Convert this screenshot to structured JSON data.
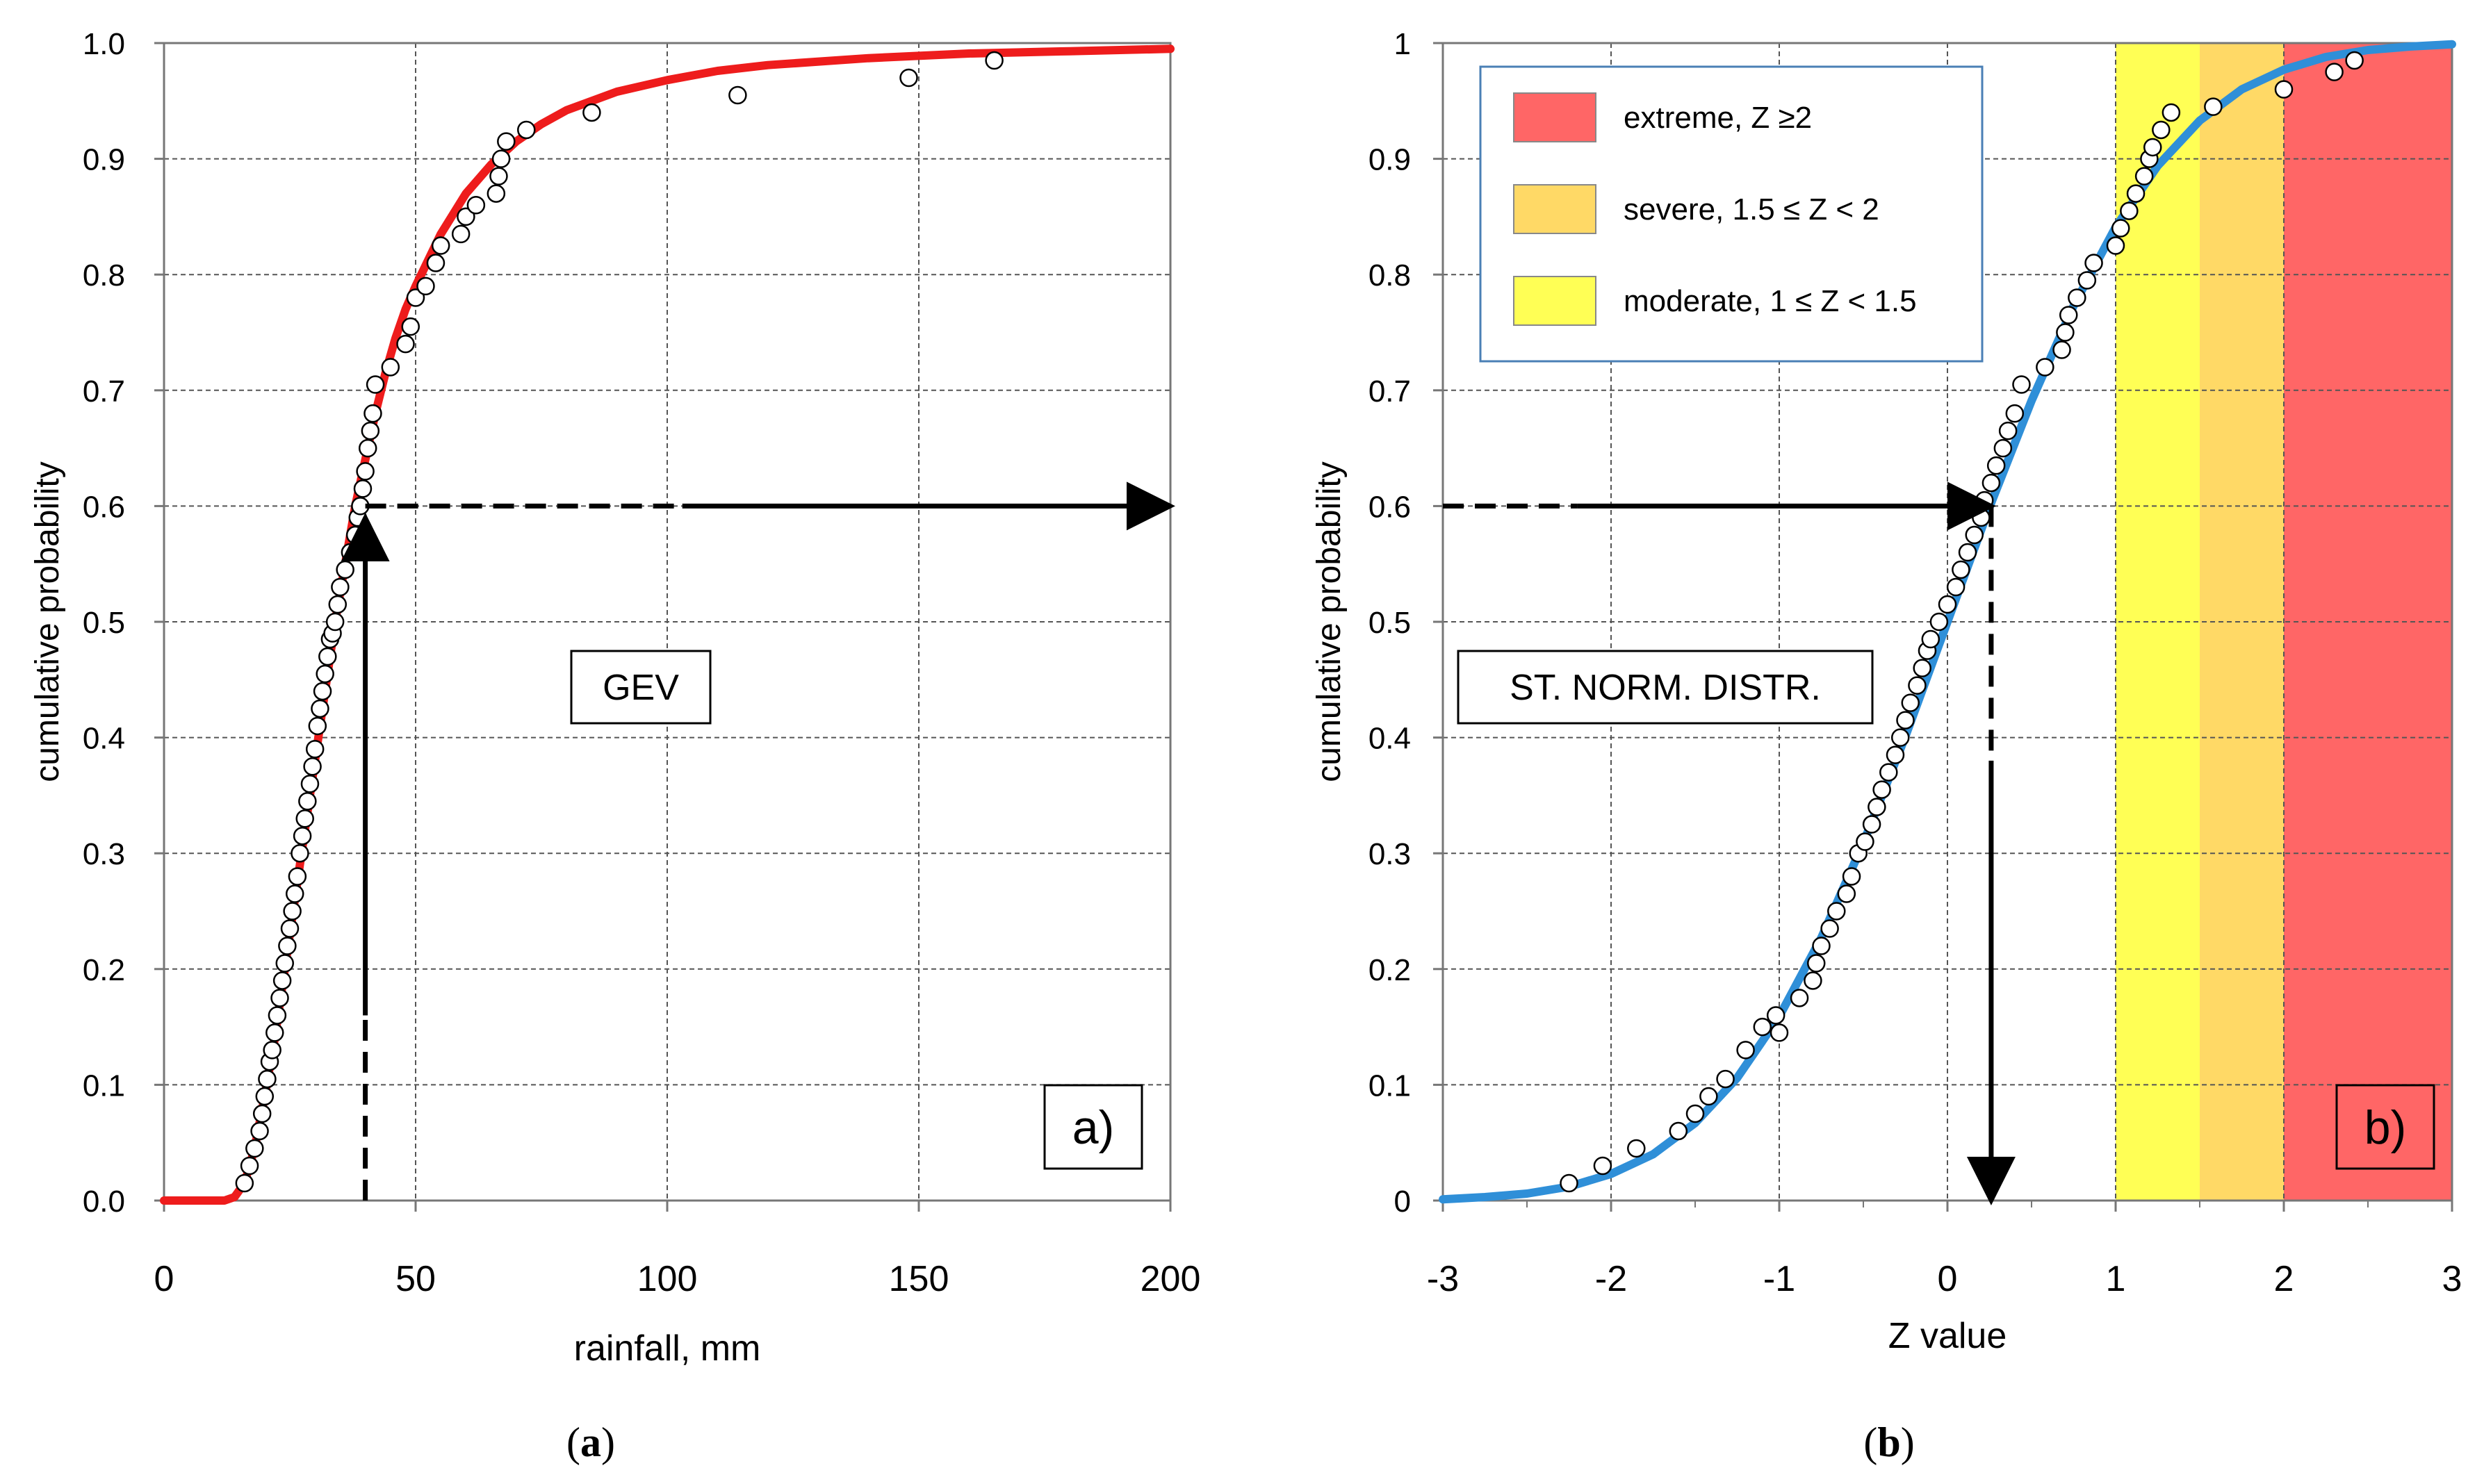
{
  "chart_data": [
    {
      "type": "line",
      "panel_label": "a)",
      "caption_letter": "a",
      "box_label": "GEV",
      "xlabel": "rainfall,  mm",
      "ylabel": "cumulative probability",
      "xlim": [
        0,
        200
      ],
      "ylim": [
        0,
        1
      ],
      "x_ticks": [
        0,
        50,
        100,
        150,
        200
      ],
      "y_ticks": [
        0,
        0.1,
        0.2,
        0.3,
        0.4,
        0.5,
        0.6,
        0.7,
        0.8,
        0.9,
        1.0
      ],
      "y_tick_labels": [
        "0.0",
        "0.1",
        "0.2",
        "0.3",
        "0.4",
        "0.5",
        "0.6",
        "0.7",
        "0.8",
        "0.9",
        "1.0"
      ],
      "grid": true,
      "series": [
        {
          "kind": "curve",
          "color": "#ee1c1c",
          "x": [
            0,
            12,
            14,
            16,
            18,
            20,
            22,
            24,
            26,
            28,
            30,
            32,
            34,
            36,
            38,
            40,
            42,
            44,
            46,
            48,
            50,
            55,
            60,
            65,
            70,
            75,
            80,
            90,
            100,
            110,
            120,
            140,
            160,
            180,
            200
          ],
          "y": [
            0,
            0,
            0.003,
            0.015,
            0.045,
            0.09,
            0.14,
            0.2,
            0.26,
            0.32,
            0.38,
            0.44,
            0.5,
            0.55,
            0.6,
            0.64,
            0.68,
            0.715,
            0.745,
            0.77,
            0.79,
            0.835,
            0.87,
            0.895,
            0.915,
            0.93,
            0.942,
            0.958,
            0.968,
            0.976,
            0.981,
            0.987,
            0.991,
            0.993,
            0.995
          ]
        },
        {
          "kind": "observed",
          "x": [
            16,
            17,
            18,
            19,
            19.5,
            20,
            20.5,
            21,
            21.5,
            22,
            22.5,
            23,
            23.5,
            24,
            24.5,
            25,
            25.5,
            26,
            26.5,
            27,
            27.5,
            28,
            28.5,
            29,
            29.5,
            30,
            30.5,
            31,
            31.5,
            32,
            32.5,
            33,
            33.5,
            34,
            34.5,
            35,
            36,
            37,
            38,
            38.5,
            39,
            39.5,
            40,
            40.5,
            41,
            41.5,
            42,
            45,
            48,
            49,
            50,
            52,
            54,
            55,
            59,
            60,
            62,
            66,
            66.5,
            67,
            68,
            72,
            85,
            114,
            148,
            165
          ],
          "y": [
            0.015,
            0.03,
            0.045,
            0.06,
            0.075,
            0.09,
            0.105,
            0.12,
            0.13,
            0.145,
            0.16,
            0.175,
            0.19,
            0.205,
            0.22,
            0.235,
            0.25,
            0.265,
            0.28,
            0.3,
            0.315,
            0.33,
            0.345,
            0.36,
            0.375,
            0.39,
            0.41,
            0.425,
            0.44,
            0.455,
            0.47,
            0.485,
            0.49,
            0.5,
            0.515,
            0.53,
            0.545,
            0.56,
            0.575,
            0.59,
            0.6,
            0.615,
            0.63,
            0.65,
            0.665,
            0.68,
            0.705,
            0.72,
            0.74,
            0.755,
            0.78,
            0.79,
            0.81,
            0.825,
            0.835,
            0.85,
            0.86,
            0.87,
            0.885,
            0.9,
            0.915,
            0.925,
            0.94,
            0.955,
            0.97,
            0.985
          ]
        }
      ],
      "arrow_up": {
        "x": 40,
        "y_dashed_from": 0,
        "y_solid_from": 0.16,
        "y_to": 0.59
      },
      "arrow_right": {
        "y": 0.6,
        "x_dashed_from": 40,
        "x_solid_from": 103,
        "x_to": 200
      }
    },
    {
      "type": "line",
      "panel_label": "b)",
      "caption_letter": "b",
      "box_label": "ST. NORM. DISTR.",
      "xlabel": "Z value",
      "ylabel": "cumulative probability",
      "xlim": [
        -3,
        3
      ],
      "ylim": [
        0,
        1
      ],
      "x_ticks": [
        -3,
        -2,
        -1,
        0,
        1,
        2,
        3
      ],
      "y_ticks": [
        0,
        0.1,
        0.2,
        0.3,
        0.4,
        0.5,
        0.6,
        0.7,
        0.8,
        0.9,
        1
      ],
      "y_tick_labels": [
        "0",
        "0.1",
        "0.2",
        "0.3",
        "0.4",
        "0.5",
        "0.6",
        "0.7",
        "0.8",
        "0.9",
        "1"
      ],
      "grid": true,
      "bands": [
        {
          "from": 1,
          "to": 1.5,
          "color": "#ffff55",
          "label": "moderate, 1 ≤ Z < 1.5"
        },
        {
          "from": 1.5,
          "to": 2,
          "color": "#ffd966",
          "label": "severe, 1.5 ≤ Z < 2"
        },
        {
          "from": 2,
          "to": 3,
          "color": "#ff6666",
          "label": "extreme, Z ≥2"
        }
      ],
      "legend_position": "top-left",
      "legend_order": [
        2,
        1,
        0
      ],
      "series": [
        {
          "kind": "curve",
          "color": "#2f8fd8",
          "x": [
            -3,
            -2.75,
            -2.5,
            -2.25,
            -2,
            -1.75,
            -1.5,
            -1.25,
            -1,
            -0.75,
            -0.5,
            -0.25,
            0,
            0.25,
            0.5,
            0.75,
            1,
            1.25,
            1.5,
            1.75,
            2,
            2.25,
            2.5,
            2.75,
            3
          ],
          "y": [
            0.001,
            0.003,
            0.006,
            0.012,
            0.023,
            0.04,
            0.067,
            0.106,
            0.159,
            0.227,
            0.309,
            0.401,
            0.5,
            0.599,
            0.691,
            0.773,
            0.841,
            0.894,
            0.933,
            0.96,
            0.977,
            0.988,
            0.994,
            0.997,
            0.999
          ]
        },
        {
          "kind": "observed",
          "x": [
            -2.25,
            -2.05,
            -1.85,
            -1.6,
            -1.5,
            -1.42,
            -1.32,
            -1.2,
            -1.1,
            -1.02,
            -1,
            -0.88,
            -0.8,
            -0.78,
            -0.75,
            -0.7,
            -0.66,
            -0.6,
            -0.57,
            -0.53,
            -0.49,
            -0.45,
            -0.42,
            -0.39,
            -0.35,
            -0.31,
            -0.28,
            -0.25,
            -0.22,
            -0.18,
            -0.15,
            -0.12,
            -0.1,
            -0.05,
            0,
            0.05,
            0.08,
            0.12,
            0.16,
            0.2,
            0.22,
            0.26,
            0.29,
            0.33,
            0.36,
            0.4,
            0.44,
            0.58,
            0.68,
            0.7,
            0.72,
            0.77,
            0.83,
            0.87,
            1,
            1.03,
            1.08,
            1.12,
            1.17,
            1.2,
            1.22,
            1.27,
            1.33,
            1.58,
            2,
            2.3,
            2.42
          ],
          "y": [
            0.015,
            0.03,
            0.045,
            0.06,
            0.075,
            0.09,
            0.105,
            0.13,
            0.15,
            0.16,
            0.145,
            0.175,
            0.19,
            0.205,
            0.22,
            0.235,
            0.25,
            0.265,
            0.28,
            0.3,
            0.31,
            0.325,
            0.34,
            0.355,
            0.37,
            0.385,
            0.4,
            0.415,
            0.43,
            0.445,
            0.46,
            0.475,
            0.485,
            0.5,
            0.515,
            0.53,
            0.545,
            0.56,
            0.575,
            0.59,
            0.605,
            0.62,
            0.635,
            0.65,
            0.665,
            0.68,
            0.705,
            0.72,
            0.735,
            0.75,
            0.765,
            0.78,
            0.795,
            0.81,
            0.825,
            0.84,
            0.855,
            0.87,
            0.885,
            0.9,
            0.91,
            0.925,
            0.94,
            0.945,
            0.96,
            0.975,
            0.985
          ]
        }
      ],
      "arrow_right": {
        "y": 0.6,
        "x_dashed_from": -3,
        "x_solid_from": -2.2,
        "x_to": 0.26
      },
      "arrow_down": {
        "x": 0.26,
        "y_dashed_from": 0.6,
        "y_solid_from": 0.38,
        "y_to": 0
      }
    }
  ]
}
